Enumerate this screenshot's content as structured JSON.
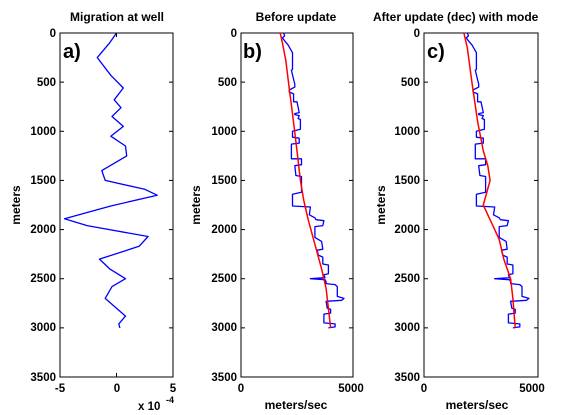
{
  "chart_data": [
    {
      "type": "line",
      "panel_label": "a)",
      "title": "Migration at well",
      "ylabel": "meters",
      "xlabel": "",
      "x_multiplier_label": "x 10",
      "x_multiplier_exponent": "-4",
      "xlim": [
        -5,
        5
      ],
      "ylim": [
        0,
        3500
      ],
      "y_inverted": true,
      "xticks": [
        -5,
        0,
        5
      ],
      "yticks": [
        0,
        500,
        1000,
        1500,
        2000,
        2500,
        3000,
        3500
      ],
      "series": [
        {
          "color": "#0000ff",
          "points": [
            [
              0,
              0
            ],
            [
              -0.6,
              100
            ],
            [
              -1.7,
              250
            ],
            [
              -0.5,
              430
            ],
            [
              0.6,
              560
            ],
            [
              -0.2,
              680
            ],
            [
              0.4,
              760
            ],
            [
              -0.4,
              850
            ],
            [
              0.6,
              950
            ],
            [
              -0.5,
              1050
            ],
            [
              0.8,
              1150
            ],
            [
              0.9,
              1250
            ],
            [
              -1.3,
              1400
            ],
            [
              -1.0,
              1500
            ],
            [
              2.5,
              1590
            ],
            [
              3.6,
              1650
            ],
            [
              -0.5,
              1760
            ],
            [
              -4.6,
              1890
            ],
            [
              -2.6,
              1960
            ],
            [
              2.8,
              2070
            ],
            [
              2.0,
              2170
            ],
            [
              -1.5,
              2300
            ],
            [
              -0.6,
              2400
            ],
            [
              0.8,
              2500
            ],
            [
              -0.4,
              2580
            ],
            [
              -1.0,
              2700
            ],
            [
              0.8,
              2880
            ],
            [
              0.2,
              2960
            ],
            [
              0.3,
              3000
            ]
          ]
        }
      ]
    },
    {
      "type": "line",
      "panel_label": "b)",
      "title": "Before update",
      "ylabel": "meters",
      "xlabel": "meters/sec",
      "xlim": [
        0,
        5000
      ],
      "ylim": [
        0,
        3500
      ],
      "y_inverted": true,
      "xticks": [
        0,
        5000
      ],
      "yticks": [
        0,
        500,
        1000,
        1500,
        2000,
        2500,
        3000,
        3500
      ],
      "series": [
        {
          "color": "#0000ff",
          "points": [
            [
              1900,
              0
            ],
            [
              1950,
              30
            ],
            [
              1850,
              50
            ],
            [
              1950,
              80
            ],
            [
              2100,
              120
            ],
            [
              2300,
              200
            ],
            [
              2300,
              370
            ],
            [
              2250,
              380
            ],
            [
              2400,
              520
            ],
            [
              2400,
              550
            ],
            [
              2150,
              580
            ],
            [
              2150,
              600
            ],
            [
              2350,
              620
            ],
            [
              2350,
              700
            ],
            [
              2500,
              700
            ],
            [
              2600,
              810
            ],
            [
              2400,
              820
            ],
            [
              2400,
              830
            ],
            [
              2600,
              840
            ],
            [
              2550,
              870
            ],
            [
              2650,
              880
            ],
            [
              2650,
              980
            ],
            [
              2300,
              1000
            ],
            [
              2300,
              1060
            ],
            [
              2600,
              1070
            ],
            [
              2600,
              1120
            ],
            [
              2250,
              1130
            ],
            [
              2250,
              1280
            ],
            [
              2700,
              1280
            ],
            [
              2700,
              1340
            ],
            [
              2400,
              1350
            ],
            [
              2450,
              1450
            ],
            [
              2700,
              1460
            ],
            [
              2700,
              1620
            ],
            [
              2300,
              1640
            ],
            [
              2300,
              1760
            ],
            [
              3100,
              1770
            ],
            [
              3050,
              1850
            ],
            [
              3300,
              1880
            ],
            [
              3350,
              1900
            ],
            [
              3700,
              1910
            ],
            [
              3650,
              1960
            ],
            [
              3300,
              1970
            ],
            [
              3300,
              2080
            ],
            [
              3600,
              2120
            ],
            [
              3650,
              2200
            ],
            [
              3400,
              2210
            ],
            [
              3450,
              2260
            ],
            [
              3650,
              2280
            ],
            [
              3650,
              2350
            ],
            [
              3900,
              2360
            ],
            [
              3900,
              2450
            ],
            [
              3700,
              2460
            ],
            [
              3750,
              2490
            ],
            [
              3100,
              2500
            ],
            [
              3750,
              2510
            ],
            [
              3800,
              2530
            ],
            [
              3800,
              2550
            ],
            [
              4200,
              2560
            ],
            [
              4300,
              2580
            ],
            [
              4300,
              2680
            ],
            [
              4600,
              2700
            ],
            [
              4500,
              2720
            ],
            [
              3800,
              2730
            ],
            [
              3850,
              2800
            ],
            [
              4000,
              2810
            ],
            [
              4000,
              2850
            ],
            [
              3700,
              2860
            ],
            [
              3700,
              2950
            ],
            [
              4200,
              2960
            ],
            [
              4200,
              2990
            ],
            [
              3900,
              3000
            ]
          ]
        },
        {
          "color": "#ff0000",
          "points": [
            [
              1750,
              0
            ],
            [
              1850,
              100
            ],
            [
              2000,
              280
            ],
            [
              2150,
              560
            ],
            [
              2300,
              820
            ],
            [
              2500,
              1200
            ],
            [
              2650,
              1500
            ],
            [
              2800,
              1700
            ],
            [
              3000,
              1900
            ],
            [
              3300,
              2150
            ],
            [
              3600,
              2400
            ],
            [
              3800,
              2600
            ],
            [
              3900,
              2800
            ],
            [
              4000,
              3000
            ]
          ]
        }
      ]
    },
    {
      "type": "line",
      "panel_label": "c)",
      "title": "After update (dec) with mode",
      "ylabel": "meters",
      "xlabel": "meters/sec",
      "xlim": [
        0,
        5000
      ],
      "ylim": [
        0,
        3500
      ],
      "y_inverted": true,
      "xticks": [
        0,
        5000
      ],
      "yticks": [
        0,
        500,
        1000,
        1500,
        2000,
        2500,
        3000,
        3500
      ],
      "series": [
        {
          "color": "#0000ff",
          "points": [
            [
              1900,
              0
            ],
            [
              1950,
              30
            ],
            [
              1850,
              50
            ],
            [
              1950,
              80
            ],
            [
              2100,
              120
            ],
            [
              2300,
              200
            ],
            [
              2300,
              370
            ],
            [
              2250,
              380
            ],
            [
              2400,
              520
            ],
            [
              2400,
              550
            ],
            [
              2150,
              580
            ],
            [
              2150,
              600
            ],
            [
              2350,
              620
            ],
            [
              2350,
              700
            ],
            [
              2500,
              700
            ],
            [
              2600,
              810
            ],
            [
              2400,
              820
            ],
            [
              2400,
              830
            ],
            [
              2600,
              840
            ],
            [
              2550,
              870
            ],
            [
              2650,
              880
            ],
            [
              2650,
              980
            ],
            [
              2300,
              1000
            ],
            [
              2300,
              1060
            ],
            [
              2600,
              1070
            ],
            [
              2600,
              1120
            ],
            [
              2250,
              1130
            ],
            [
              2250,
              1280
            ],
            [
              2700,
              1280
            ],
            [
              2700,
              1340
            ],
            [
              2400,
              1350
            ],
            [
              2450,
              1450
            ],
            [
              2700,
              1460
            ],
            [
              2700,
              1620
            ],
            [
              2300,
              1640
            ],
            [
              2300,
              1760
            ],
            [
              3100,
              1770
            ],
            [
              3050,
              1850
            ],
            [
              3300,
              1880
            ],
            [
              3350,
              1900
            ],
            [
              3700,
              1910
            ],
            [
              3650,
              1960
            ],
            [
              3300,
              1970
            ],
            [
              3300,
              2080
            ],
            [
              3600,
              2120
            ],
            [
              3650,
              2200
            ],
            [
              3400,
              2210
            ],
            [
              3450,
              2260
            ],
            [
              3650,
              2280
            ],
            [
              3650,
              2350
            ],
            [
              3900,
              2360
            ],
            [
              3900,
              2450
            ],
            [
              3700,
              2460
            ],
            [
              3750,
              2490
            ],
            [
              3100,
              2500
            ],
            [
              3750,
              2510
            ],
            [
              3800,
              2530
            ],
            [
              3800,
              2550
            ],
            [
              4200,
              2560
            ],
            [
              4300,
              2580
            ],
            [
              4300,
              2680
            ],
            [
              4600,
              2700
            ],
            [
              4500,
              2720
            ],
            [
              3800,
              2730
            ],
            [
              3850,
              2800
            ],
            [
              4000,
              2810
            ],
            [
              4000,
              2850
            ],
            [
              3700,
              2860
            ],
            [
              3700,
              2950
            ],
            [
              4200,
              2960
            ],
            [
              4200,
              2990
            ],
            [
              3900,
              3000
            ]
          ]
        },
        {
          "color": "#ff0000",
          "points": [
            [
              1750,
              0
            ],
            [
              1900,
              150
            ],
            [
              2100,
              500
            ],
            [
              2350,
              900
            ],
            [
              2600,
              1200
            ],
            [
              2800,
              1350
            ],
            [
              2900,
              1500
            ],
            [
              2600,
              1750
            ],
            [
              2800,
              1850
            ],
            [
              3100,
              2000
            ],
            [
              3300,
              2100
            ],
            [
              3500,
              2300
            ],
            [
              3800,
              2500
            ],
            [
              3900,
              2700
            ],
            [
              4000,
              3000
            ]
          ]
        }
      ]
    }
  ]
}
